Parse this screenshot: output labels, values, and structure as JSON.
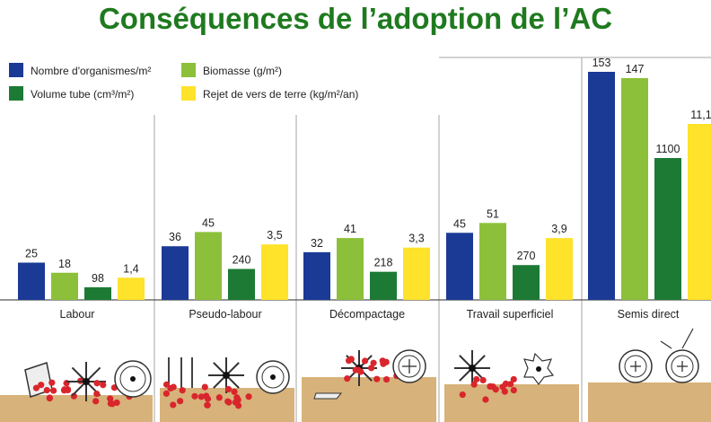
{
  "title": "Conséquences de l’adoption de l’AC",
  "colors": {
    "title": "#1f7a1f",
    "blue": "#1a3a96",
    "lightgreen": "#8dc03a",
    "darkgreen": "#1d7a34",
    "yellow": "#ffe22a",
    "divider": "#a6a6a6",
    "soil": "#d7b27a",
    "particles": "#d8262c"
  },
  "chart_data": {
    "type": "bar",
    "categories": [
      "Labour",
      "Pseudo-labour",
      "Décompactage",
      "Travail superficiel",
      "Semis direct"
    ],
    "series": [
      {
        "name": "Nombre d'organismes/m²",
        "color_key": "blue",
        "values": [
          25,
          36,
          32,
          45,
          153
        ],
        "labels": [
          "25",
          "36",
          "32",
          "45",
          "153"
        ]
      },
      {
        "name": "Biomasse (g/m²)",
        "color_key": "lightgreen",
        "values": [
          18,
          45,
          41,
          51,
          147
        ],
        "labels": [
          "18",
          "45",
          "41",
          "51",
          "147"
        ]
      },
      {
        "name": "Volume tube (cm³/m²)",
        "color_key": "darkgreen",
        "values": [
          98,
          240,
          218,
          270,
          1100
        ],
        "labels": [
          "98",
          "240",
          "218",
          "270",
          "1100"
        ]
      },
      {
        "name": "Rejet de vers de terre (kg/m²/an)",
        "color_key": "yellow",
        "values": [
          1.4,
          3.5,
          3.3,
          3.9,
          11.1
        ],
        "labels": [
          "1,4",
          "3,5",
          "3,3",
          "3,9",
          "11,1"
        ]
      }
    ],
    "legend_position": "top-left",
    "grid": false
  }
}
